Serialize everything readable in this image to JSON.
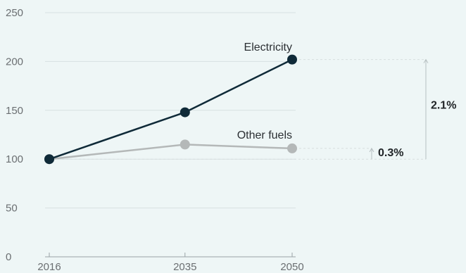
{
  "chart_data": {
    "type": "line",
    "title": "",
    "xlabel": "",
    "ylabel": "",
    "x": [
      "2016",
      "2035",
      "2050"
    ],
    "x_numeric": [
      2016,
      2035,
      2050
    ],
    "ylim": [
      0,
      250
    ],
    "yticks": [
      0,
      50,
      100,
      150,
      200,
      250
    ],
    "grid": true,
    "series": [
      {
        "name": "Electricity",
        "values": [
          100,
          148,
          202
        ],
        "color": "#0f2a38",
        "growth": "2.1%"
      },
      {
        "name": "Other fuels",
        "values": [
          100,
          115,
          111
        ],
        "color": "#b4b8b8",
        "growth": "0.3%"
      }
    ]
  }
}
